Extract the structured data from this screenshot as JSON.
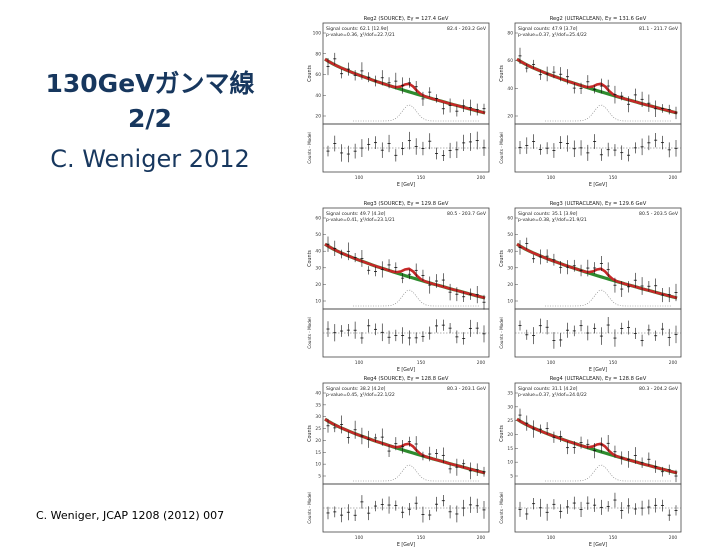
{
  "slide": {
    "title_line1": "130GeVガンマ線",
    "title_line2": "2/2",
    "subtitle": "C. Weniger 2012",
    "citation": "C. Weniger, JCAP 1208 (2012) 007"
  },
  "colors": {
    "title": "#17375e",
    "model": "#2e8b2e",
    "fit": "#c62828"
  },
  "panels": [
    {
      "id": "p1",
      "header": "Reg2 (SOURCE), Eγ = 127.4 GeV",
      "info1": "Signal counts: 62.1 [12.9σ]",
      "info2": "p-value=0.36, χ²/dof=22.7/21",
      "range": "82.4 - 203.2 GeV",
      "yticks": [
        "100",
        "80",
        "60",
        "40",
        "20"
      ],
      "xticks": [
        "100",
        "150",
        "200"
      ],
      "xlabel": "E [GeV]",
      "ylabel": "Counts",
      "rlabel": "Counts - Model"
    },
    {
      "id": "p2",
      "header": "Reg2 (ULTRACLEAN), Eγ = 131.6 GeV",
      "info1": "Signal counts: 47.9 [3.7σ]",
      "info2": "p-value=0.37, χ²/dof=25.4/22",
      "range": "81.1 - 211.7 GeV",
      "yticks": [
        "80",
        "60",
        "40",
        "20"
      ],
      "xticks": [
        "100",
        "150",
        "200"
      ],
      "xlabel": "E [GeV]",
      "ylabel": "Counts",
      "rlabel": "Counts - Model"
    },
    {
      "id": "p3",
      "header": "Reg3 (SOURCE), Eγ = 129.8 GeV",
      "info1": "Signal counts: 49.7 [4.3σ]",
      "info2": "p-value=0.41, χ²/dof=23.1/21",
      "range": "80.5 - 203.7 GeV",
      "yticks": [
        "60",
        "50",
        "40",
        "30",
        "20",
        "10"
      ],
      "xticks": [
        "100",
        "150",
        "200"
      ],
      "xlabel": "E [GeV]",
      "ylabel": "Counts",
      "rlabel": "Counts - Model"
    },
    {
      "id": "p4",
      "header": "Reg3 (ULTRACLEAN), Eγ = 129.6 GeV",
      "info1": "Signal counts: 35.1 [3.9σ]",
      "info2": "p-value=0.38, χ²/dof=21.9/21",
      "range": "80.5 - 203.5 GeV",
      "yticks": [
        "60",
        "50",
        "40",
        "30",
        "20",
        "10"
      ],
      "xticks": [
        "100",
        "150",
        "200"
      ],
      "xlabel": "E [GeV]",
      "ylabel": "Counts",
      "rlabel": "Counts - Model"
    },
    {
      "id": "p5",
      "header": "Reg4 (SOURCE), Eγ = 128.8 GeV",
      "info1": "Signal counts: 38.2 [4.2σ]",
      "info2": "p-value=0.45, χ²/dof=22.1/22",
      "range": "80.3 - 203.1 GeV",
      "yticks": [
        "40",
        "35",
        "30",
        "25",
        "20",
        "15",
        "10",
        "5"
      ],
      "xticks": [
        "100",
        "150",
        "200"
      ],
      "xlabel": "E [GeV]",
      "ylabel": "Counts",
      "rlabel": "Counts - Model"
    },
    {
      "id": "p6",
      "header": "Reg4 (ULTRACLEAN), Eγ = 128.8 GeV",
      "info1": "Signal counts: 31.1 [4.2σ]",
      "info2": "p-value=0.37, χ²/dof=24.0/22",
      "range": "80.3 - 204.2 GeV",
      "yticks": [
        "35",
        "30",
        "25",
        "20",
        "15",
        "10",
        "5"
      ],
      "xticks": [
        "100",
        "150",
        "200"
      ],
      "xlabel": "E [GeV]",
      "ylabel": "Counts",
      "rlabel": "Counts - Model"
    }
  ]
}
